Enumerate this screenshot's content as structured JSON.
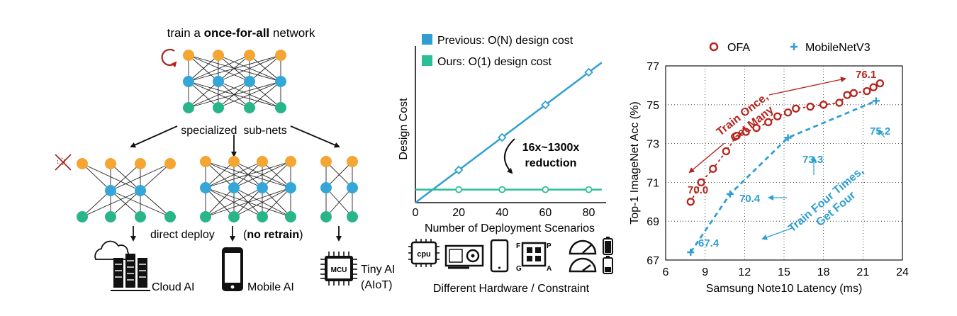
{
  "left_panel": {
    "title_prefix": "train a ",
    "title_bold": "once-for-all",
    "title_suffix": " network",
    "subnets_label": "specialized  sub-nets",
    "deploy_prefix": "direct deploy",
    "deploy_paren_open": "(",
    "deploy_bold": "no retrain",
    "deploy_paren_close": ")",
    "targets": [
      {
        "label": "Cloud AI"
      },
      {
        "label": "Mobile AI"
      },
      {
        "label": "Tiny AI",
        "label2": "(AIoT)"
      }
    ],
    "mcu_text": "MCU",
    "colors": {
      "top_node": "#f4a532",
      "mid_node": "#34a7d8",
      "bot_node": "#29b58a",
      "loop_arrow": "#a0221e",
      "cross": "#a0221e"
    }
  },
  "middle_panel": {
    "legend": [
      {
        "label": "Previous: O(N) design cost",
        "color": "#2f9fd3"
      },
      {
        "label": "Ours: O(1) design cost",
        "color": "#2bbf98"
      }
    ],
    "annotation_line1": "16x~1300x",
    "annotation_line2": "reduction",
    "hardware_caption": "Different Hardware / Constraint",
    "cpu_text": "cpu",
    "chip_letters": [
      "F",
      "P",
      "G",
      "A"
    ],
    "chart_data": {
      "type": "line",
      "xlabel": "Number of Deployment Scenarios",
      "ylabel": "Design Cost",
      "xlim": [
        0,
        88
      ],
      "x_ticks": [
        "0",
        "20",
        "40",
        "60",
        "80"
      ],
      "series": [
        {
          "name": "Previous: O(N) design cost",
          "x": [
            20,
            40,
            60,
            80
          ],
          "y": [
            20,
            40,
            60,
            80
          ]
        },
        {
          "name": "Ours: O(1) design cost",
          "x": [
            20,
            40,
            60,
            80
          ],
          "y": [
            8,
            8,
            8,
            8
          ]
        }
      ]
    }
  },
  "right_panel": {
    "legend": [
      {
        "label": "OFA",
        "symbol": "circle",
        "color": "#b5241c"
      },
      {
        "label": "MobileNetV3",
        "symbol": "plus",
        "color": "#2f9fd3"
      }
    ],
    "train_once": [
      "Train Once,",
      "Get Many"
    ],
    "train_four": [
      "Train Four Times,",
      "Get Four"
    ],
    "chart_data": {
      "type": "scatter",
      "xlabel": "Samsung Note10 Latency (ms)",
      "ylabel": "Top-1 ImageNet Acc (%)",
      "xlim": [
        6,
        24
      ],
      "ylim": [
        67,
        77
      ],
      "x_ticks": [
        "6",
        "9",
        "12",
        "15",
        "18",
        "21",
        "24"
      ],
      "y_ticks": [
        "67",
        "69",
        "71",
        "73",
        "75",
        "77"
      ],
      "series": [
        {
          "name": "OFA",
          "x": [
            7.9,
            8.7,
            9.6,
            10.6,
            11.4,
            12.1,
            12.9,
            13.8,
            14.5,
            15.3,
            15.9,
            17.0,
            18.0,
            19.2,
            19.8,
            20.3,
            21.3,
            21.8,
            22.3
          ],
          "y": [
            70.0,
            71.0,
            71.7,
            72.6,
            73.4,
            73.6,
            73.8,
            74.1,
            74.4,
            74.6,
            74.8,
            74.9,
            75.0,
            75.1,
            75.5,
            75.6,
            75.7,
            75.9,
            76.1
          ]
        },
        {
          "name": "MobileNetV3",
          "x": [
            7.9,
            10.9,
            15.3,
            22.0
          ],
          "y": [
            67.4,
            70.4,
            73.3,
            75.2
          ]
        }
      ],
      "point_labels": [
        {
          "text": "70.0",
          "color": "#b5241c"
        },
        {
          "text": "76.1",
          "color": "#b5241c"
        },
        {
          "text": "67.4",
          "color": "#2f9fd3"
        },
        {
          "text": "70.4",
          "color": "#2f9fd3"
        },
        {
          "text": "73.3",
          "color": "#2f9fd3"
        },
        {
          "text": "75.2",
          "color": "#2f9fd3"
        }
      ]
    }
  }
}
